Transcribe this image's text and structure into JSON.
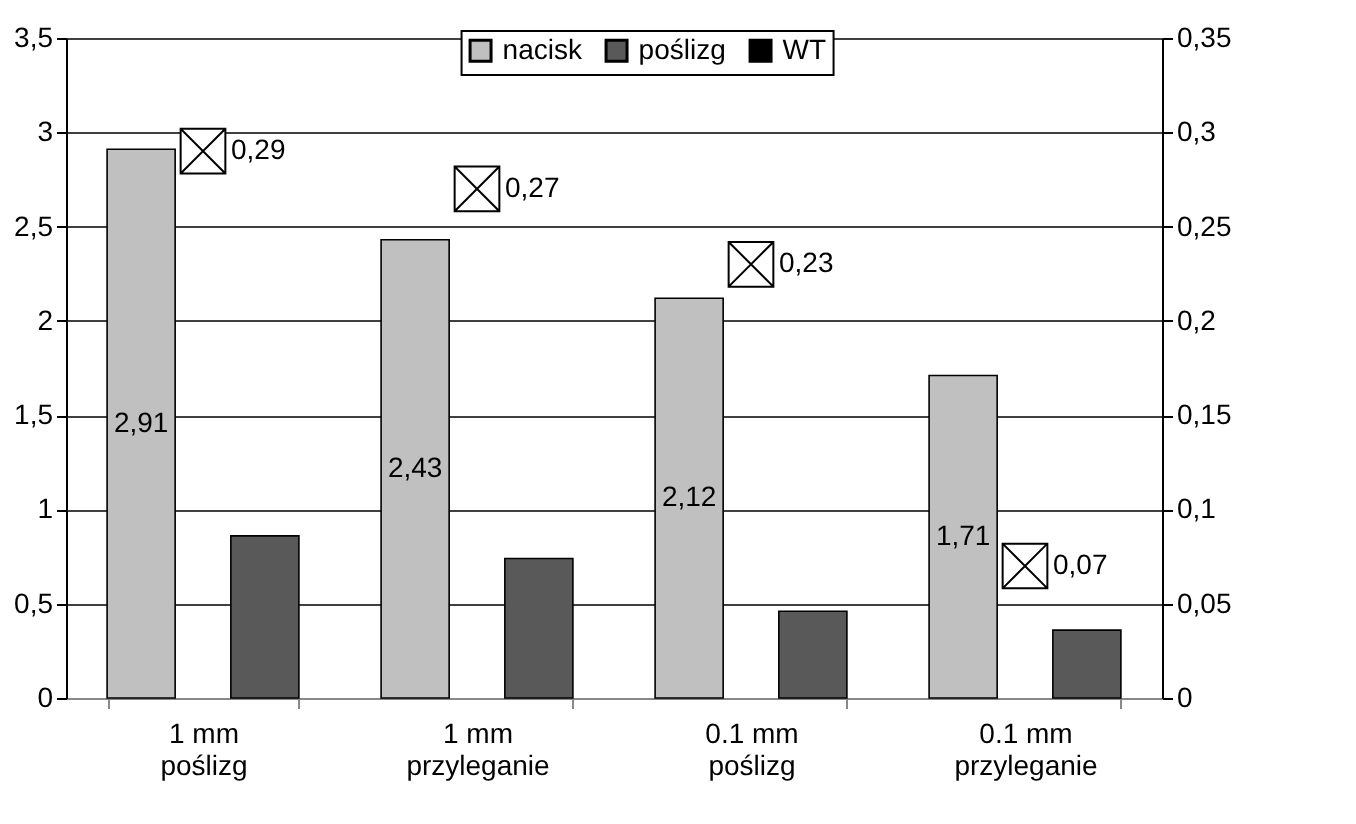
{
  "chart_data": {
    "type": "bar",
    "categories": [
      "1 mm\npoślizg",
      "1 mm\nprzyleganie",
      "0.1 mm\npoślizg",
      "0.1 mm\nprzyleganie"
    ],
    "series": [
      {
        "name": "nacisk",
        "color": "#c0c0c0",
        "values": [
          2.91,
          2.43,
          2.12,
          1.71
        ],
        "value_labels": [
          "2,91",
          "2,43",
          "2,12",
          "1,71"
        ]
      },
      {
        "name": "poślizg",
        "color": "#595959",
        "values": [
          0.86,
          0.74,
          0.46,
          0.36
        ]
      },
      {
        "name": "WT",
        "type": "scatter",
        "axis": "y2",
        "color": "#000000",
        "values": [
          0.29,
          0.27,
          0.23,
          0.07
        ],
        "value_labels": [
          "0,29",
          "0,27",
          "0,23",
          "0,07"
        ]
      }
    ],
    "marker": "cross",
    "ylim": [
      0,
      3.5
    ],
    "yticks": [
      0,
      {
        "value": 0.5,
        "label": "0,5"
      },
      1,
      {
        "value": 1.5,
        "label": "1,5"
      },
      2,
      {
        "value": 2.5,
        "label": "2,5"
      },
      3,
      {
        "value": 3.5,
        "label": "3,5"
      }
    ],
    "y2lim": [
      0,
      0.35
    ],
    "y2ticks": [
      0,
      {
        "value": 0.05,
        "label": "0,05"
      },
      {
        "value": 0.1,
        "label": "0,1"
      },
      {
        "value": 0.15,
        "label": "0,15"
      },
      {
        "value": 0.2,
        "label": "0,2"
      },
      {
        "value": 0.25,
        "label": "0,25"
      },
      {
        "value": 0.3,
        "label": "0,3"
      },
      {
        "value": 0.35,
        "label": "0,35"
      }
    ],
    "grid": "y",
    "legend": "top"
  }
}
